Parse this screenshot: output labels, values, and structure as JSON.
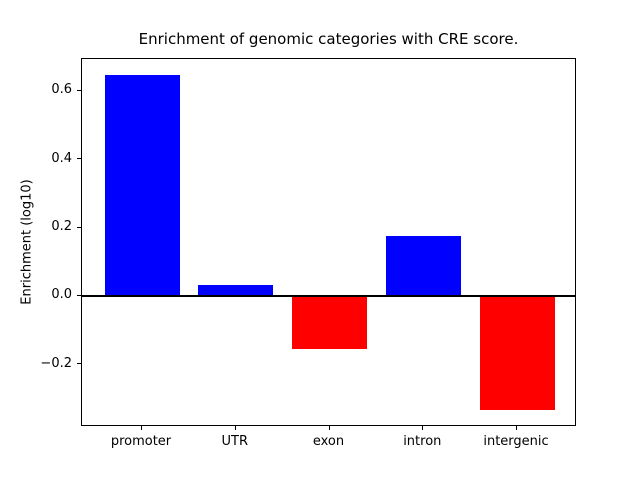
{
  "chart_data": {
    "type": "bar",
    "title": "Enrichment of genomic categories with CRE score.",
    "xlabel": "",
    "ylabel": "Enrichment (log10)",
    "categories": [
      "promoter",
      "UTR",
      "exon",
      "intron",
      "intergenic"
    ],
    "values": [
      0.646,
      0.033,
      -0.156,
      0.177,
      -0.334
    ],
    "bar_colors": [
      "#0000FF",
      "#0000FF",
      "#FF0000",
      "#0000FF",
      "#FF0000"
    ],
    "positive_color": "#0000FF",
    "negative_color": "#FF0000",
    "ylim": [
      -0.383,
      0.694
    ],
    "yticks": [
      -0.2,
      0.0,
      0.2,
      0.4,
      0.6
    ],
    "ytick_labels": [
      "−0.2",
      "0.0",
      "0.2",
      "0.4",
      "0.6"
    ],
    "grid": false,
    "legend": null,
    "zero_line": true,
    "background_color": "#FFFFFF",
    "axis_color": "#000000"
  }
}
